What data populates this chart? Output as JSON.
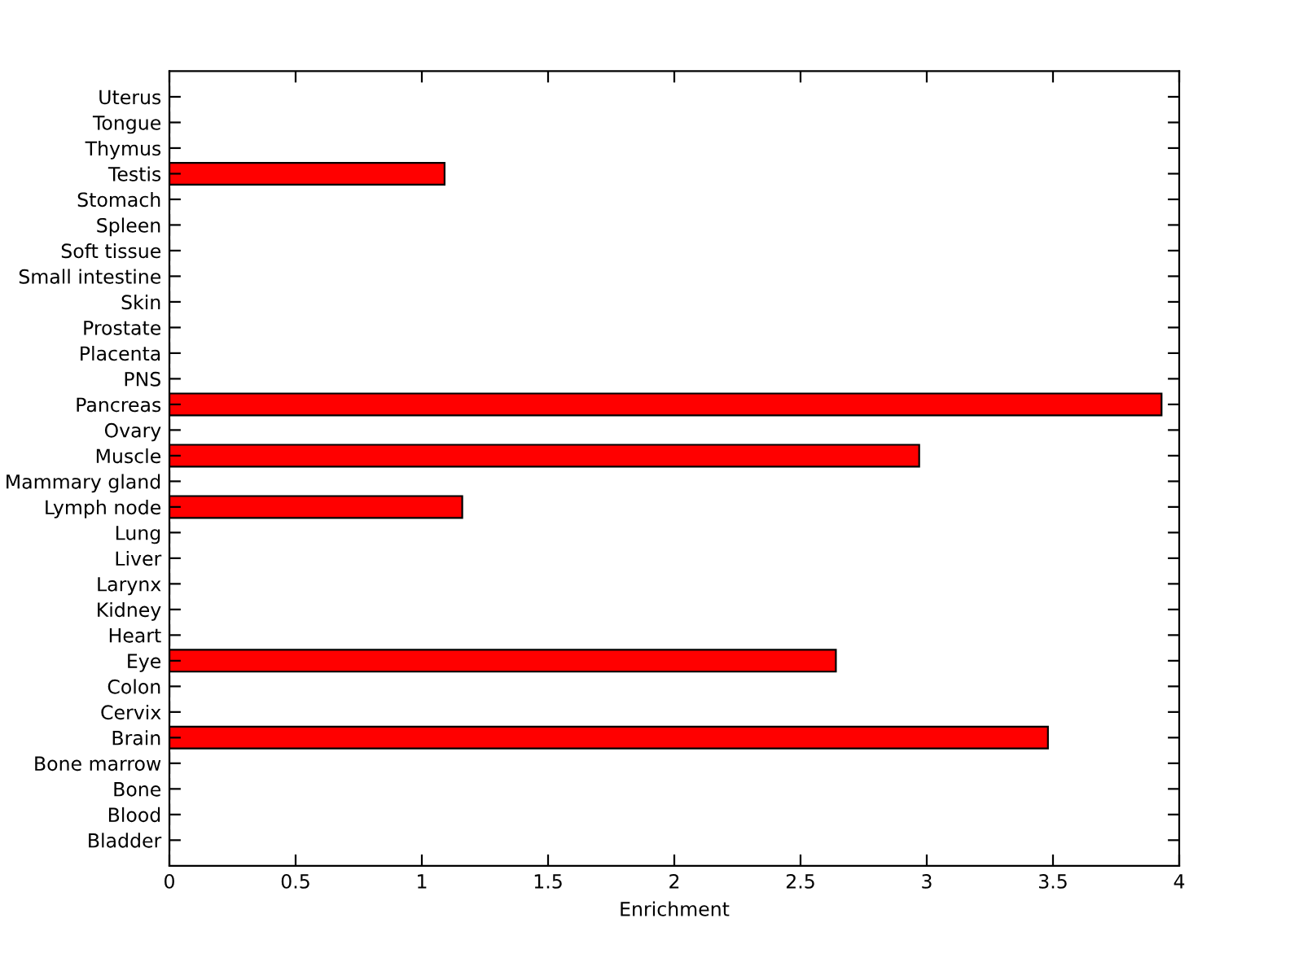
{
  "chart_data": {
    "type": "bar",
    "orientation": "horizontal",
    "xlabel": "Enrichment",
    "categories": [
      "Uterus",
      "Tongue",
      "Thymus",
      "Testis",
      "Stomach",
      "Spleen",
      "Soft tissue",
      "Small intestine",
      "Skin",
      "Prostate",
      "Placenta",
      "PNS",
      "Pancreas",
      "Ovary",
      "Muscle",
      "Mammary gland",
      "Lymph node",
      "Lung",
      "Liver",
      "Larynx",
      "Kidney",
      "Heart",
      "Eye",
      "Colon",
      "Cervix",
      "Brain",
      "Bone marrow",
      "Bone",
      "Blood",
      "Bladder"
    ],
    "values": [
      0,
      0,
      0,
      1.09,
      0,
      0,
      0,
      0,
      0,
      0,
      0,
      0,
      3.93,
      0,
      2.97,
      0,
      1.16,
      0,
      0,
      0,
      0,
      0,
      2.64,
      0,
      0,
      3.48,
      0,
      0,
      0,
      0
    ],
    "color": "#ff0000",
    "xlim": [
      0,
      4
    ],
    "xticks": [
      0,
      0.5,
      1,
      1.5,
      2,
      2.5,
      3,
      3.5,
      4
    ],
    "grid": false,
    "legend": false
  }
}
